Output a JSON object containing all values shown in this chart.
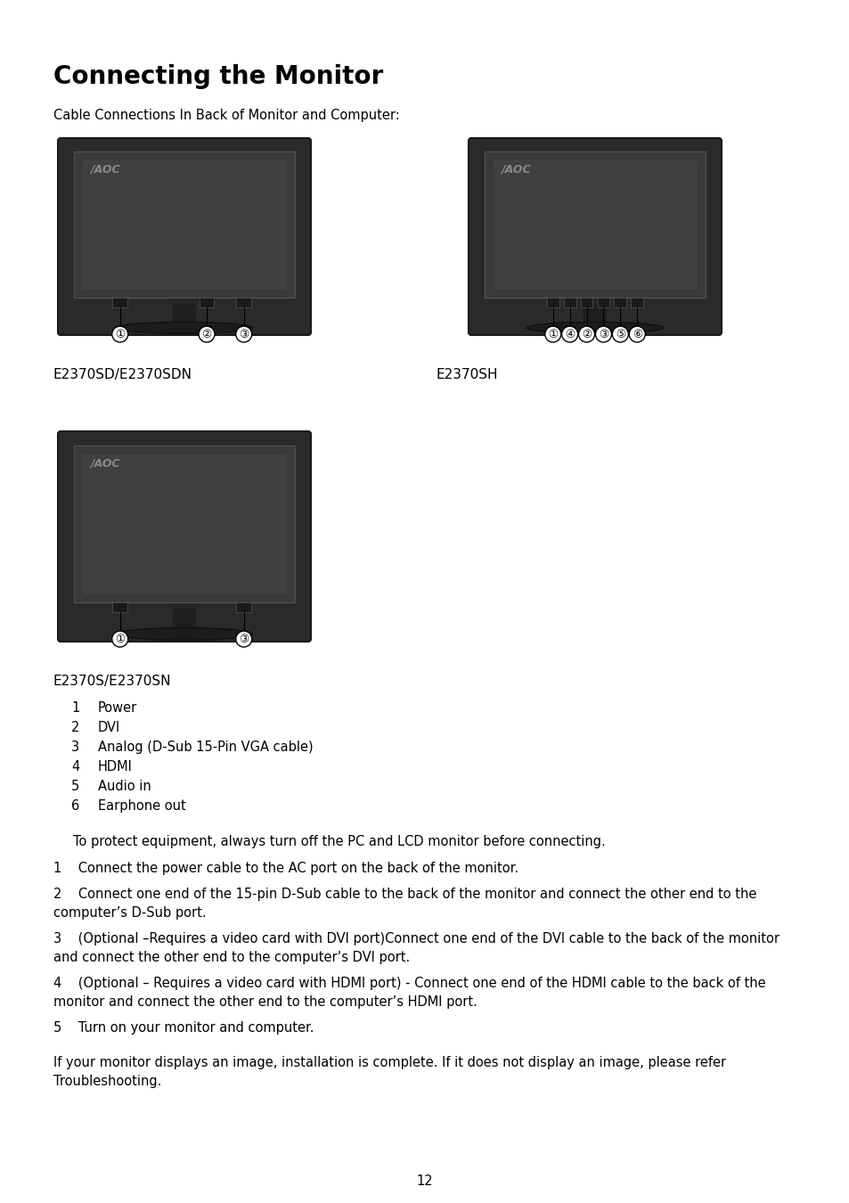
{
  "title": "Connecting the Monitor",
  "subtitle": "Cable Connections In Back of Monitor and Computer:",
  "monitor_label_1": "E2370SD/E2370SDN",
  "monitor_label_2": "E2370SH",
  "monitor_label_3": "E2370S/E2370SN",
  "port_list": [
    [
      "1",
      "Power"
    ],
    [
      "2",
      "DVI"
    ],
    [
      "3",
      "Analog (D-Sub 15-Pin VGA cable)"
    ],
    [
      "4",
      "HDMI"
    ],
    [
      "5",
      "Audio in"
    ],
    [
      "6",
      "Earphone out"
    ]
  ],
  "protect_note": "To protect equipment, always turn off the PC and LCD monitor before connecting.",
  "step1": "1    Connect the power cable to the AC port on the back of the monitor.",
  "step2a": "2    Connect one end of the 15-pin D-Sub cable to the back of the monitor and connect the other end to the",
  "step2b": "computer’s D-Sub port.",
  "step3a": "3    (Optional –Requires a video card with DVI port)Connect one end of the DVI cable to the back of the monitor",
  "step3b": "and connect the other end to the computer’s DVI port.",
  "step4a": "4    (Optional – Requires a video card with HDMI port) - Connect one end of the HDMI cable to the back of the",
  "step4b": "monitor and connect the other end to the computer’s HDMI port.",
  "step5": "5    Turn on your monitor and computer.",
  "closing1": "If your monitor displays an image, installation is complete. If it does not display an image, please refer",
  "closing2": "Troubleshooting.",
  "page_number": "12",
  "bg_color": "#ffffff",
  "text_color": "#000000"
}
